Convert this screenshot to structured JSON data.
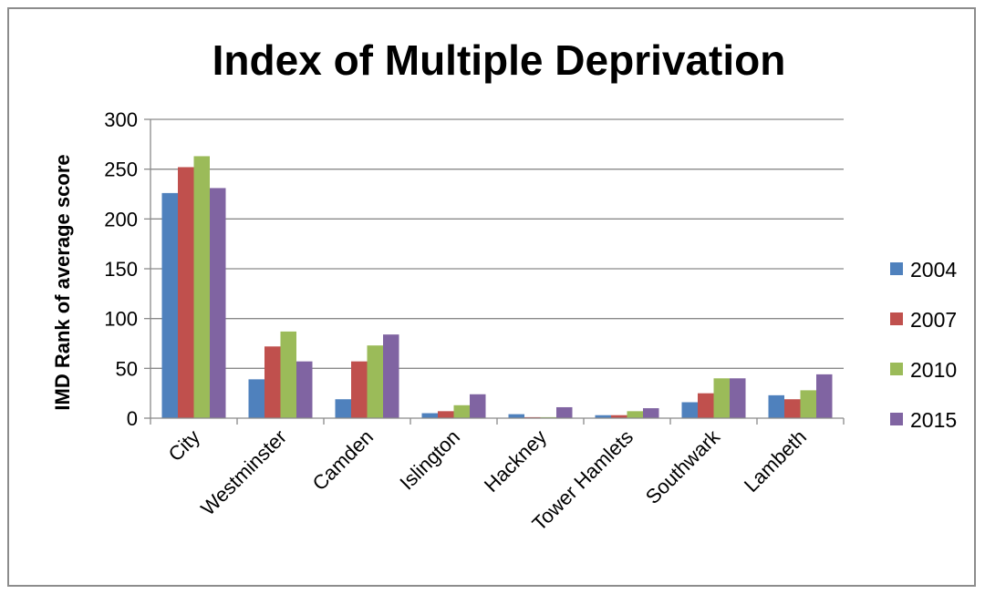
{
  "chart_data": {
    "type": "bar",
    "title": "Index of Multiple Deprivation",
    "xlabel": "",
    "ylabel": "IMD Rank of average score",
    "ylim": [
      0,
      300
    ],
    "yticks": [
      "0",
      "50",
      "100",
      "150",
      "200",
      "250",
      "300"
    ],
    "grid": true,
    "legend_position": "right",
    "categories": [
      "City",
      "Westminster",
      "Camden",
      "Islington",
      "Hackney",
      "Tower Hamlets",
      "Southwark",
      "Lambeth"
    ],
    "series": [
      {
        "name": "2004",
        "color": "#4f81bd",
        "values": [
          226,
          39,
          19,
          5,
          4,
          3,
          16,
          23
        ]
      },
      {
        "name": "2007",
        "color": "#c0504d",
        "values": [
          252,
          72,
          57,
          7,
          1,
          3,
          25,
          19
        ]
      },
      {
        "name": "2010",
        "color": "#9bbb59",
        "values": [
          263,
          87,
          73,
          13,
          1,
          7,
          40,
          28
        ]
      },
      {
        "name": "2015",
        "color": "#8064a2",
        "values": [
          231,
          57,
          84,
          24,
          11,
          10,
          40,
          44
        ]
      }
    ]
  }
}
